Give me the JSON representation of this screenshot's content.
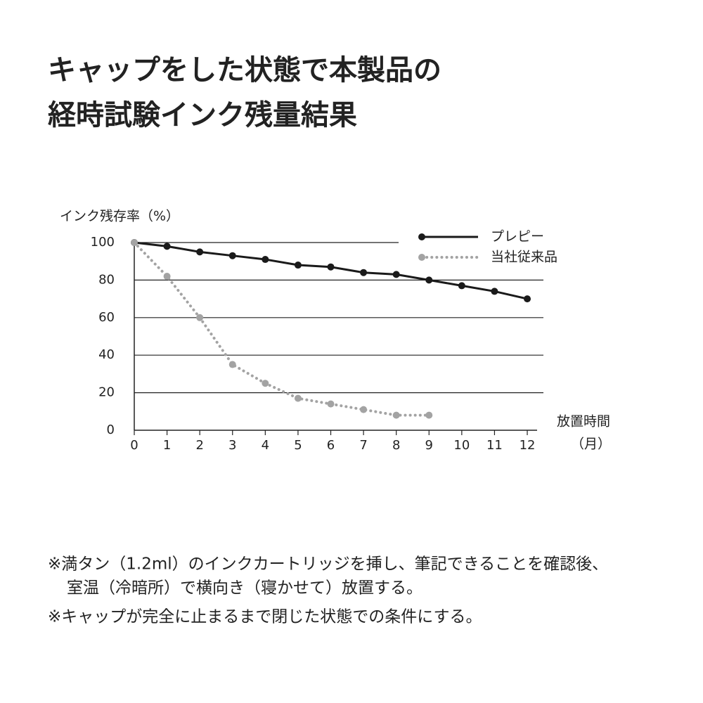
{
  "chart_data": {
    "type": "line",
    "title": [
      "キャップをした状態で本製品の",
      "経時試験インク残量結果"
    ],
    "y_label": "インク残存率（%）",
    "x_label": [
      "放置時間",
      "（月）"
    ],
    "x": [
      0,
      1,
      2,
      3,
      4,
      5,
      6,
      7,
      8,
      9,
      10,
      11,
      12
    ],
    "xlim": [
      0,
      12.3
    ],
    "xticks": [
      0,
      1,
      2,
      3,
      4,
      5,
      6,
      7,
      8,
      9,
      10,
      11,
      12
    ],
    "ylim": [
      0,
      100
    ],
    "yticks": [
      0,
      20,
      40,
      60,
      80,
      100
    ],
    "grid": true,
    "legend": "top-right",
    "series": [
      {
        "name": "プレピー",
        "color": "#1a1a1a",
        "style": "solid",
        "values": [
          100,
          98,
          95,
          93,
          91,
          88,
          87,
          84,
          83,
          80,
          77,
          74,
          70
        ]
      },
      {
        "name": "当社従来品",
        "color": "#a3a3a3",
        "style": "dotted",
        "values": [
          100,
          82,
          60,
          35,
          25,
          17,
          14,
          11,
          8,
          8,
          null,
          null,
          null
        ]
      }
    ],
    "notes": [
      "※満タン（1.2ml）のインクカートリッジを挿し、筆記できることを確認後、",
      "室温（冷暗所）で横向き（寝かせて）放置する。",
      "※キャップが完全に止まるまで閉じた状態での条件にする。"
    ]
  }
}
